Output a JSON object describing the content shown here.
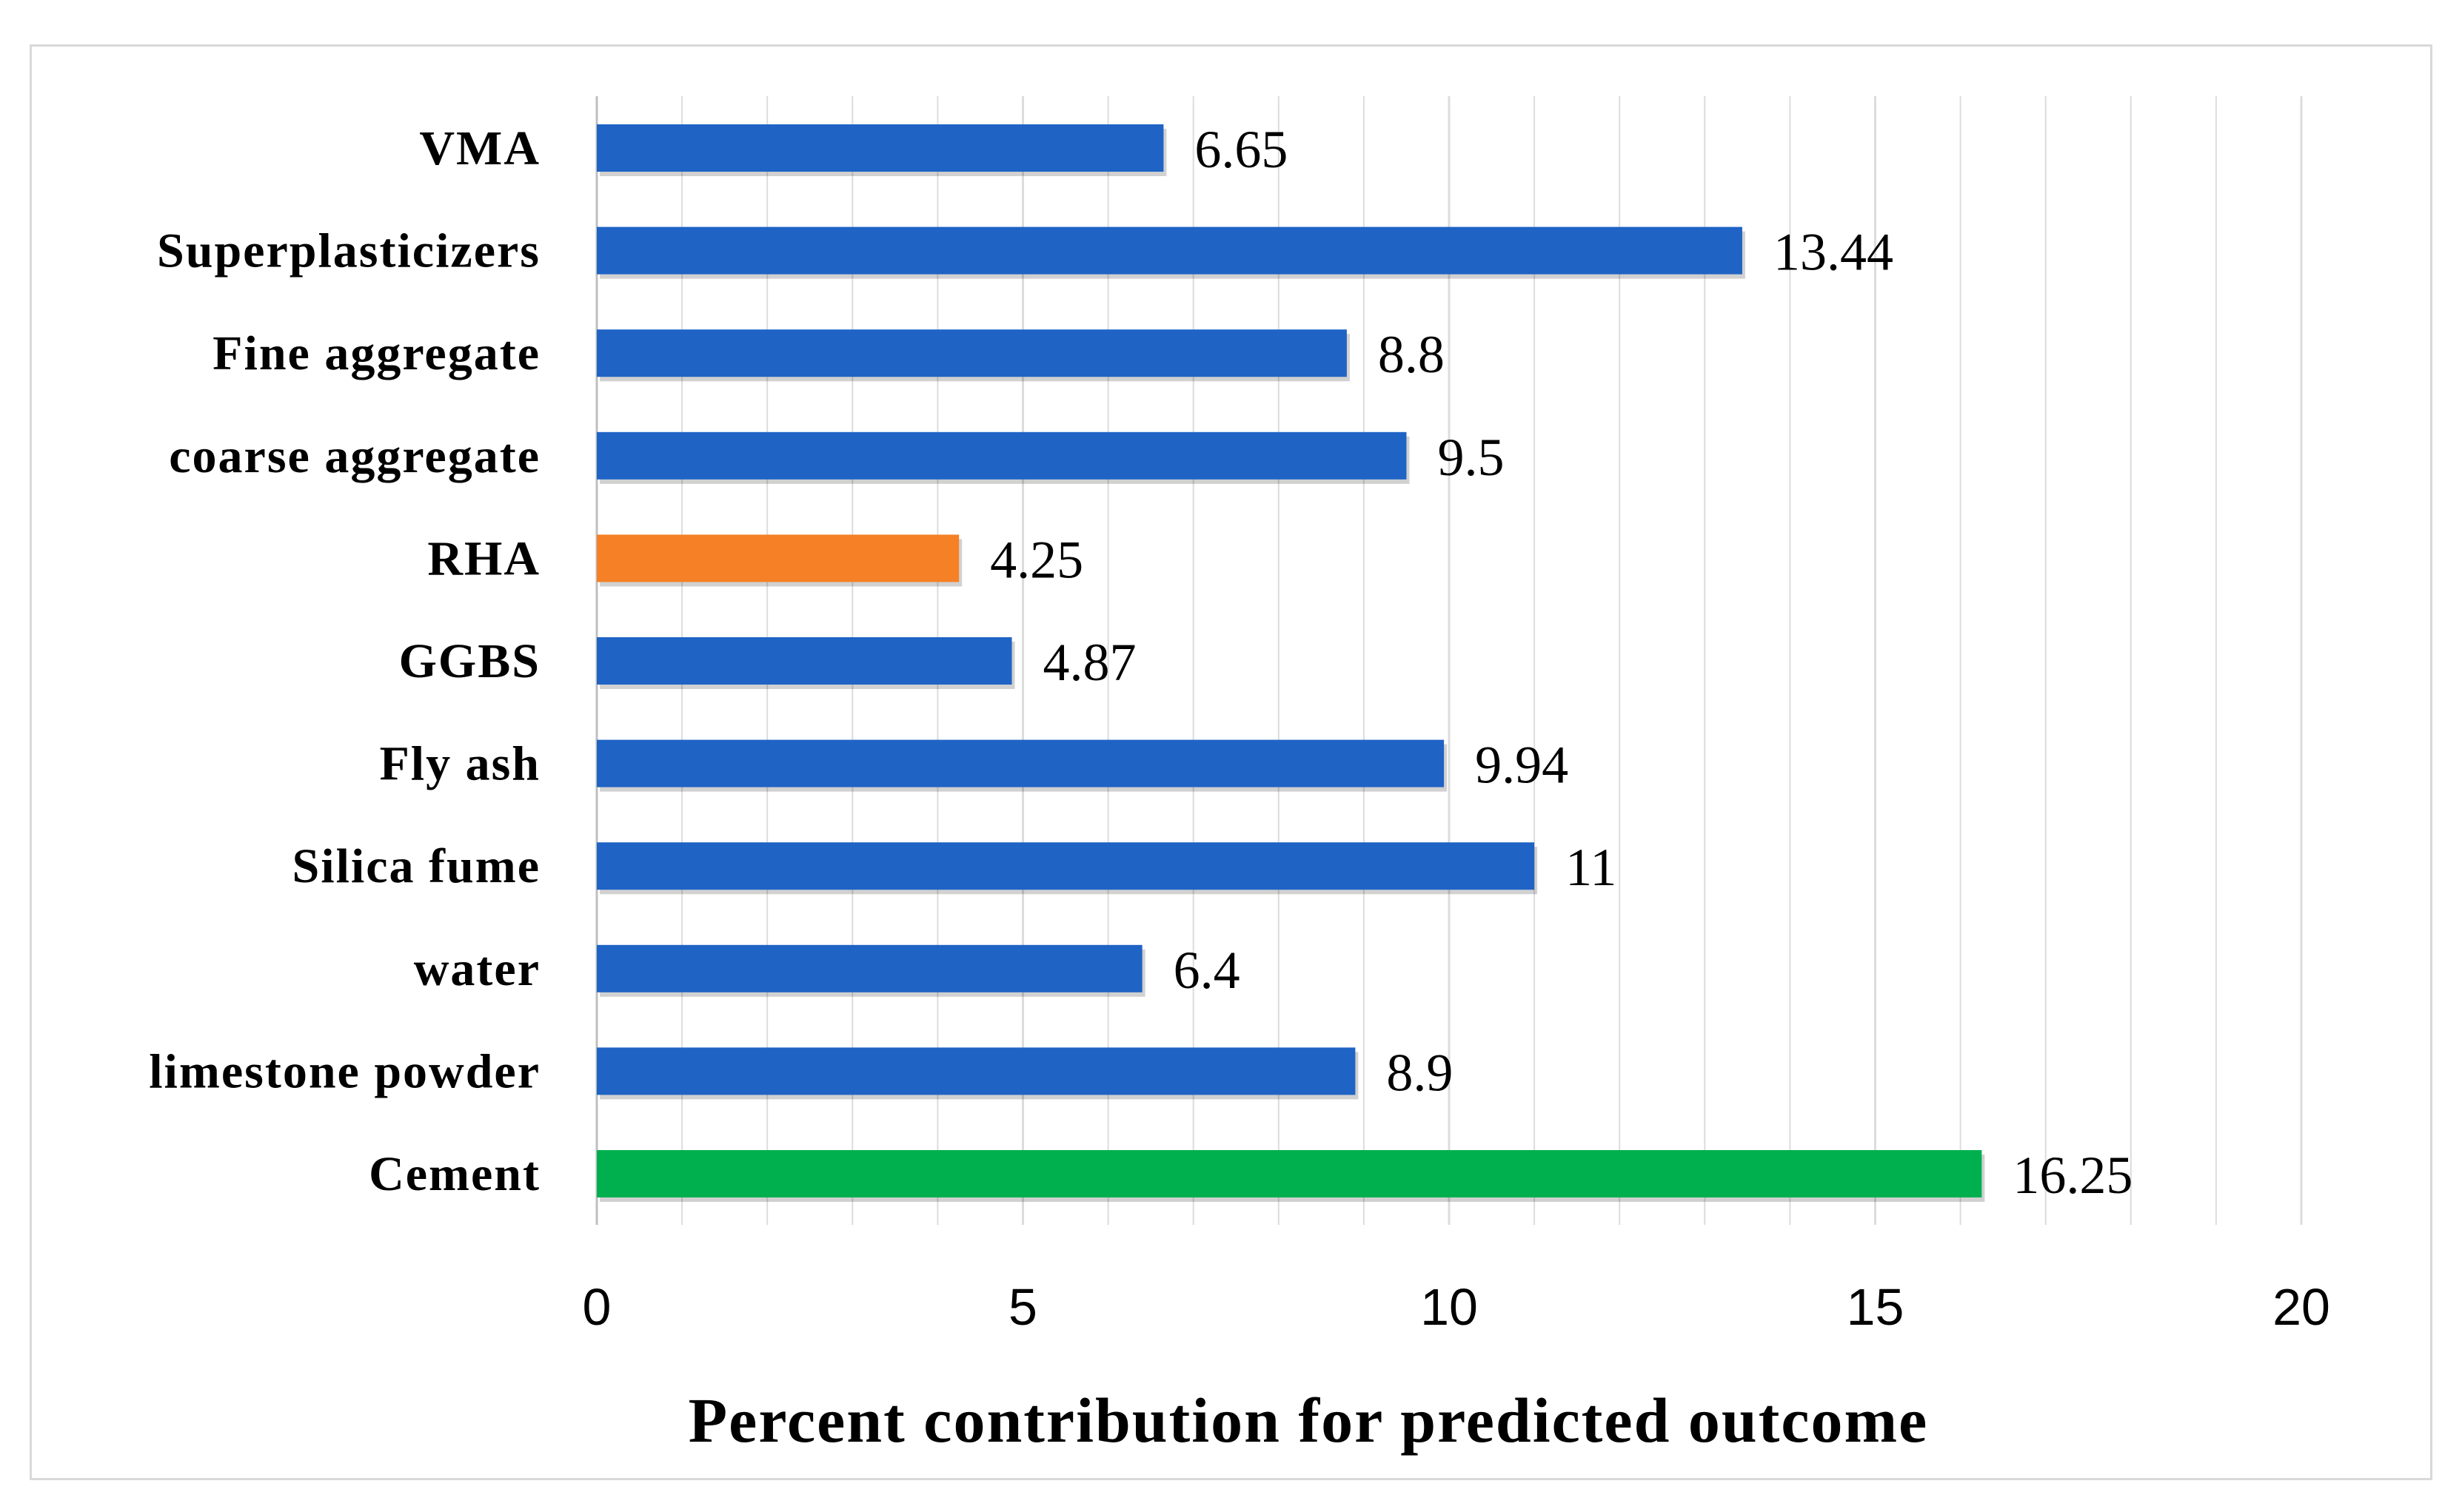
{
  "chart_data": {
    "type": "bar",
    "orientation": "horizontal",
    "title": "",
    "xlabel": "Percent contribution for predicted outcome",
    "ylabel": "",
    "xlim": [
      0,
      20
    ],
    "xticks": [
      "0",
      "5",
      "10",
      "15",
      "20"
    ],
    "grid": true,
    "legend": "none",
    "categories": [
      "VMA",
      "Superplasticizers",
      "Fine aggregate",
      "coarse aggregate",
      "RHA",
      "GGBS",
      "Fly ash",
      "Silica fume",
      "water",
      "limestone powder",
      "Cement"
    ],
    "values": [
      6.65,
      13.44,
      8.8,
      9.5,
      4.25,
      4.87,
      9.94,
      11,
      6.4,
      8.9,
      16.25
    ],
    "value_labels": [
      "6.65",
      "13.44",
      "8.8",
      "9.5",
      "4.25",
      "4.87",
      "9.94",
      "11",
      "6.4",
      "8.9",
      "16.25"
    ],
    "colors": [
      "#1f63c5",
      "#1f63c5",
      "#1f63c5",
      "#1f63c5",
      "#f58025",
      "#1f63c5",
      "#1f63c5",
      "#1f63c5",
      "#1f63c5",
      "#1f63c5",
      "#00b04f"
    ],
    "grid_color": "#dcdcdc",
    "axis_color": "#bfbfbf"
  }
}
